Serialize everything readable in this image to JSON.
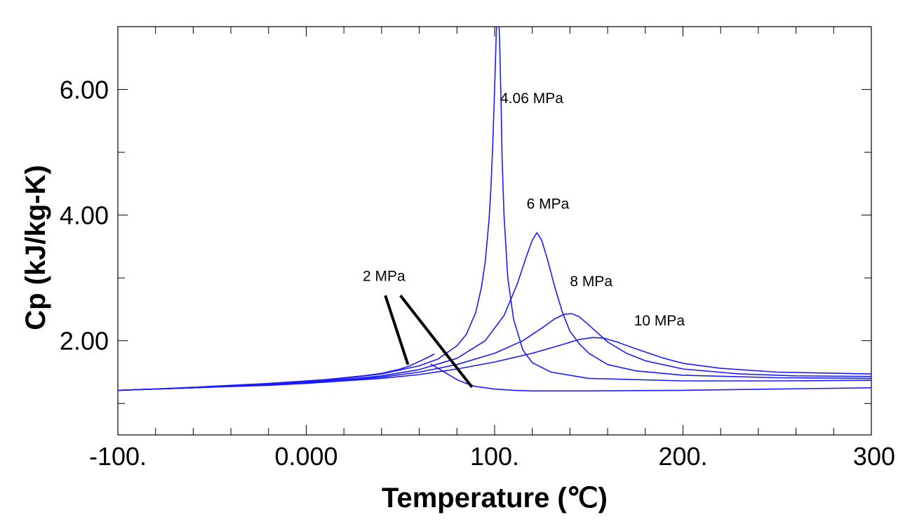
{
  "chart_data": {
    "type": "line",
    "xlabel": "Temperature (℃)",
    "ylabel": "Cp (kJ/kg-K)",
    "xlim": [
      -100,
      300
    ],
    "ylim": [
      0.5,
      7.0
    ],
    "x_ticks": [
      -100,
      0,
      100,
      200,
      300
    ],
    "x_tick_labels": [
      "-100.",
      "0.000",
      "100.",
      "200.",
      "300"
    ],
    "y_ticks": [
      2,
      4,
      6
    ],
    "y_tick_labels": [
      "2.00",
      "4.00",
      "6.00"
    ],
    "grid": false,
    "legend": "none",
    "line_color": "#1a1aff",
    "annotation_line_color": "#000000",
    "series": [
      {
        "name": "2 MPa",
        "segments": [
          {
            "x": [
              -100,
              -80,
              -60,
              -40,
              -20,
              0,
              10,
              20,
              30,
              40,
              50,
              55,
              60,
              65,
              68
            ],
            "y": [
              1.21,
              1.23,
              1.26,
              1.29,
              1.32,
              1.36,
              1.38,
              1.41,
              1.44,
              1.48,
              1.55,
              1.6,
              1.67,
              1.74,
              1.79
            ]
          },
          {
            "x": [
              66,
              70,
              75,
              80,
              85,
              90,
              95,
              100,
              110,
              120,
              130,
              150,
              200,
              250,
              300
            ],
            "y": [
              1.63,
              1.56,
              1.47,
              1.38,
              1.32,
              1.27,
              1.25,
              1.23,
              1.21,
              1.2,
              1.2,
              1.2,
              1.21,
              1.23,
              1.25
            ]
          }
        ]
      },
      {
        "name": "4.06 MPa",
        "segments": [
          {
            "x": [
              -100,
              -60,
              -20,
              0,
              20,
              40,
              60,
              70,
              80,
              85,
              90,
              93,
              95,
              97,
              98,
              99,
              100,
              100.6,
              101,
              101.3
            ],
            "y": [
              1.21,
              1.25,
              1.31,
              1.35,
              1.4,
              1.47,
              1.6,
              1.71,
              1.92,
              2.1,
              2.45,
              2.85,
              3.25,
              3.9,
              4.4,
              5.1,
              6.0,
              6.6,
              7.0,
              7.0
            ]
          },
          {
            "x": [
              102.4,
              102.8,
              103.5,
              104,
              105,
              107,
              110,
              115,
              120,
              130,
              150,
              200,
              250,
              300
            ],
            "y": [
              7.0,
              6.6,
              5.7,
              4.9,
              4.0,
              3.0,
              2.35,
              1.85,
              1.65,
              1.5,
              1.4,
              1.36,
              1.36,
              1.37
            ]
          }
        ]
      },
      {
        "name": "6 MPa",
        "segments": [
          {
            "x": [
              -100,
              -60,
              -20,
              0,
              20,
              40,
              60,
              80,
              95,
              105,
              112,
              117,
              120,
              122.5,
              125,
              128,
              132,
              136,
              140,
              145,
              150,
              160,
              175,
              200,
              250,
              300
            ],
            "y": [
              1.21,
              1.25,
              1.3,
              1.34,
              1.38,
              1.44,
              1.54,
              1.72,
              2.0,
              2.4,
              2.9,
              3.35,
              3.6,
              3.72,
              3.6,
              3.3,
              2.85,
              2.45,
              2.15,
              1.95,
              1.8,
              1.62,
              1.52,
              1.45,
              1.41,
              1.4
            ]
          }
        ]
      },
      {
        "name": "8 MPa",
        "segments": [
          {
            "x": [
              -100,
              -60,
              -20,
              0,
              20,
              40,
              60,
              80,
              100,
              115,
              125,
              132,
              137,
              141,
              145,
              150,
              160,
              170,
              180,
              200,
              230,
              260,
              300
            ],
            "y": [
              1.21,
              1.25,
              1.3,
              1.33,
              1.37,
              1.42,
              1.5,
              1.62,
              1.8,
              2.0,
              2.2,
              2.35,
              2.42,
              2.43,
              2.38,
              2.25,
              1.98,
              1.8,
              1.68,
              1.55,
              1.47,
              1.44,
              1.43
            ]
          }
        ]
      },
      {
        "name": "10 MPa",
        "segments": [
          {
            "x": [
              -100,
              -60,
              -20,
              0,
              20,
              40,
              60,
              80,
              100,
              120,
              135,
              145,
              152,
              158,
              165,
              175,
              190,
              200,
              220,
              250,
              300
            ],
            "y": [
              1.21,
              1.25,
              1.29,
              1.32,
              1.36,
              1.4,
              1.46,
              1.55,
              1.66,
              1.8,
              1.93,
              2.02,
              2.05,
              2.04,
              1.98,
              1.87,
              1.72,
              1.64,
              1.56,
              1.5,
              1.47
            ]
          }
        ]
      }
    ],
    "annotations": [
      {
        "text": "4.06 MPa",
        "x": 103,
        "y": 5.78,
        "anchor": "start"
      },
      {
        "text": "6 MPa",
        "x": 117,
        "y": 4.1,
        "anchor": "start"
      },
      {
        "text": "8 MPa",
        "x": 140,
        "y": 2.87,
        "anchor": "start"
      },
      {
        "text": "10 MPa",
        "x": 174,
        "y": 2.24,
        "anchor": "start"
      },
      {
        "text": "2 MPa",
        "x": 30,
        "y": 2.95,
        "anchor": "start"
      }
    ],
    "pointer_lines": [
      {
        "from": [
          42,
          2.72
        ],
        "to": [
          54,
          1.62
        ]
      },
      {
        "from": [
          50,
          2.72
        ],
        "to": [
          88,
          1.26
        ]
      }
    ]
  }
}
